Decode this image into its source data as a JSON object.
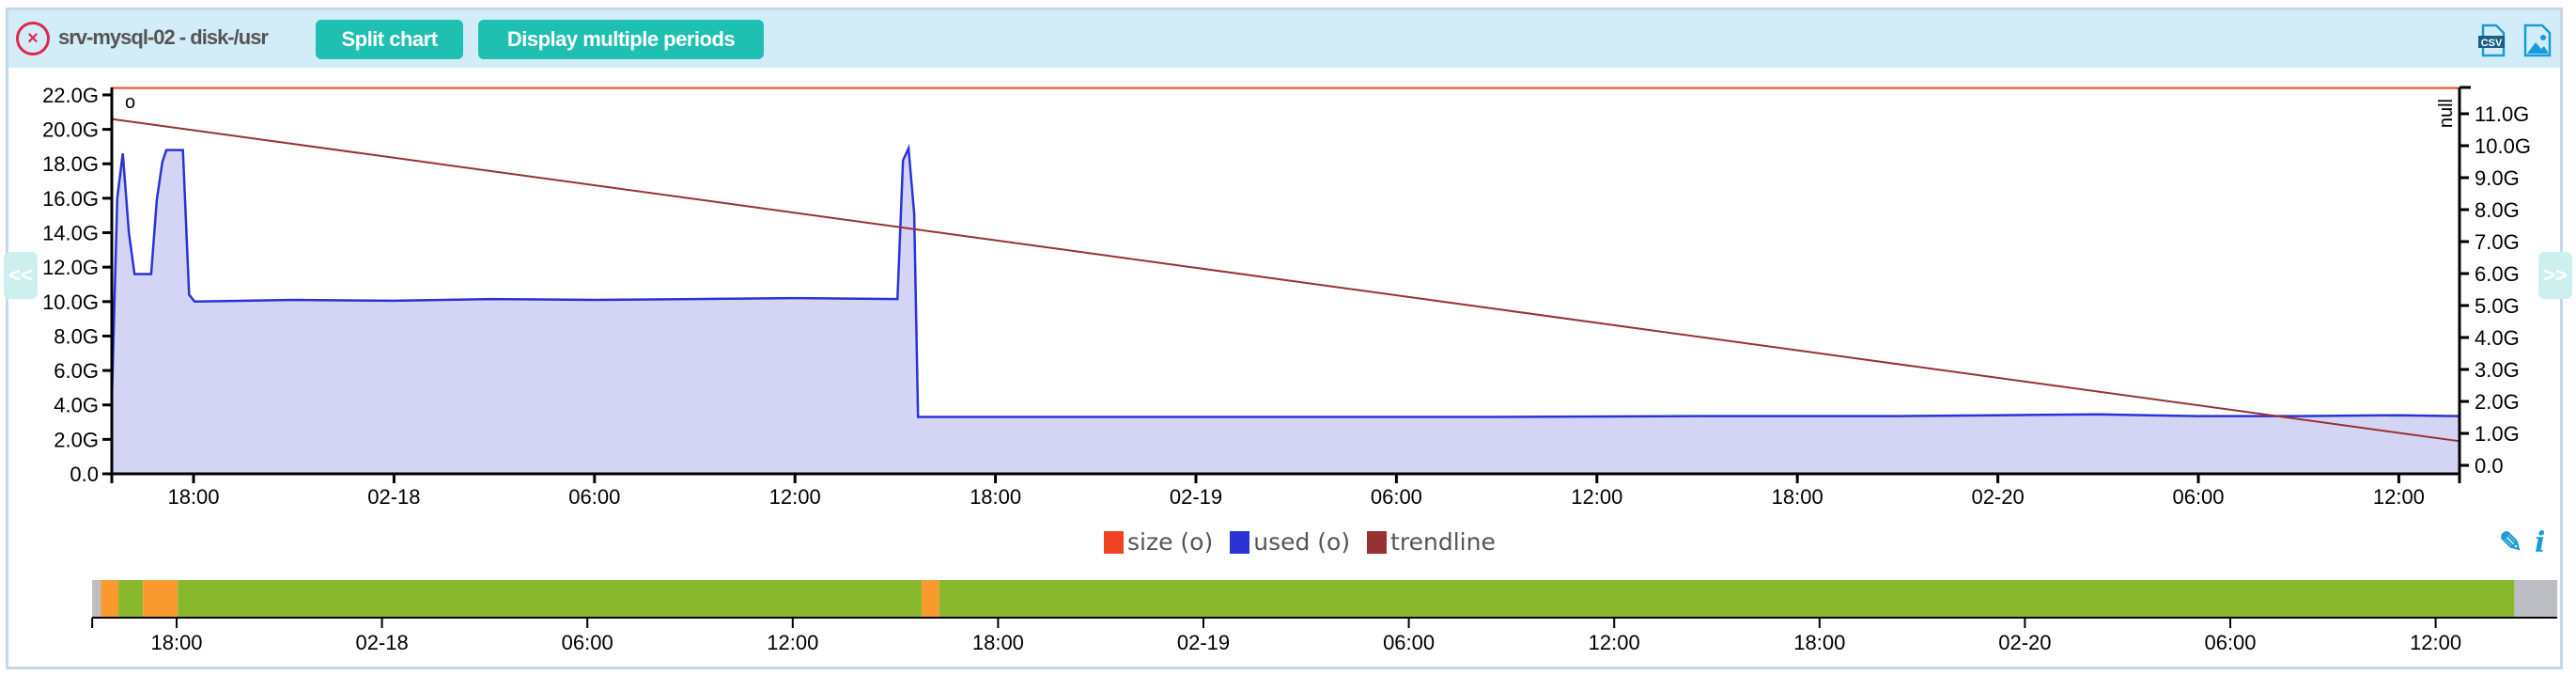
{
  "header": {
    "title": "srv-mysql-02 - disk-/usr",
    "split_chart_label": "Split chart",
    "multiple_periods_label": "Display multiple periods",
    "csv_icon_text": "CSV",
    "icons": [
      "close-circle-icon",
      "csv-export-icon",
      "image-export-icon"
    ]
  },
  "nav_buttons": {
    "prev": "<<",
    "next": ">>"
  },
  "colors": {
    "size": "#f04323",
    "used": "#2b33d6",
    "used_fill": "#d4d5f5",
    "trendline": "#973134",
    "ok": "#8ab82d",
    "warning": "#f99a2f",
    "nodata": "#bcbec3",
    "header_bg": "#d3edf8",
    "button": "#1fbfb2"
  },
  "chart_data": {
    "type": "area",
    "left_axis": {
      "label": "o",
      "ticks": [
        "0.0",
        "2.0G",
        "4.0G",
        "6.0G",
        "8.0G",
        "10.0G",
        "12.0G",
        "14.0G",
        "16.0G",
        "18.0G",
        "20.0G",
        "22.0G"
      ],
      "range": [
        0,
        22.4
      ]
    },
    "right_axis": {
      "label": "null",
      "ticks": [
        "0.0",
        "1.0G",
        "2.0G",
        "3.0G",
        "4.0G",
        "5.0G",
        "6.0G",
        "7.0G",
        "8.0G",
        "9.0G",
        "10.0G",
        "11.0G"
      ]
    },
    "x_range": [
      "02-17 15:33",
      "02-20 13:48"
    ],
    "x_ticks": [
      {
        "time": "02-17 18:00",
        "label": "18:00"
      },
      {
        "time": "02-18 00:00",
        "label": "02-18"
      },
      {
        "time": "02-18 06:00",
        "label": "06:00"
      },
      {
        "time": "02-18 12:00",
        "label": "12:00"
      },
      {
        "time": "02-18 18:00",
        "label": "18:00"
      },
      {
        "time": "02-19 00:00",
        "label": "02-19"
      },
      {
        "time": "02-19 06:00",
        "label": "06:00"
      },
      {
        "time": "02-19 12:00",
        "label": "12:00"
      },
      {
        "time": "02-19 18:00",
        "label": "18:00"
      },
      {
        "time": "02-20 00:00",
        "label": "02-20"
      },
      {
        "time": "02-20 06:00",
        "label": "06:00"
      },
      {
        "time": "02-20 12:00",
        "label": "12:00"
      }
    ],
    "series": [
      {
        "name": "size (o)",
        "unit": "G",
        "points": [
          [
            "02-17 15:33",
            22.4
          ],
          [
            "02-20 13:48",
            22.4
          ]
        ]
      },
      {
        "name": "used (o)",
        "unit": "G",
        "points": [
          [
            "02-17 15:33",
            4.0
          ],
          [
            "02-17 15:43",
            16.0
          ],
          [
            "02-17 15:53",
            18.6
          ],
          [
            "02-17 16:04",
            14.0
          ],
          [
            "02-17 16:14",
            11.6
          ],
          [
            "02-17 16:44",
            11.6
          ],
          [
            "02-17 16:54",
            15.9
          ],
          [
            "02-17 17:04",
            18.1
          ],
          [
            "02-17 17:11",
            18.8
          ],
          [
            "02-17 17:41",
            18.8
          ],
          [
            "02-17 17:52",
            10.4
          ],
          [
            "02-17 18:02",
            10.0
          ],
          [
            "02-17 21:00",
            10.1
          ],
          [
            "02-18 00:00",
            10.05
          ],
          [
            "02-18 03:00",
            10.15
          ],
          [
            "02-18 06:00",
            10.1
          ],
          [
            "02-18 09:00",
            10.15
          ],
          [
            "02-18 12:00",
            10.2
          ],
          [
            "02-18 15:04",
            10.15
          ],
          [
            "02-18 15:14",
            18.2
          ],
          [
            "02-18 15:24",
            18.9
          ],
          [
            "02-18 15:34",
            15.1
          ],
          [
            "02-18 15:41",
            3.3
          ],
          [
            "02-18 21:00",
            3.3
          ],
          [
            "02-19 03:00",
            3.3
          ],
          [
            "02-19 09:00",
            3.3
          ],
          [
            "02-19 15:00",
            3.35
          ],
          [
            "02-19 21:00",
            3.35
          ],
          [
            "02-20 00:00",
            3.4
          ],
          [
            "02-20 03:00",
            3.45
          ],
          [
            "02-20 06:00",
            3.35
          ],
          [
            "02-20 09:00",
            3.35
          ],
          [
            "02-20 12:00",
            3.4
          ],
          [
            "02-20 13:48",
            3.35
          ]
        ]
      },
      {
        "name": "trendline",
        "unit": "G",
        "points": [
          [
            "02-17 15:33",
            20.6
          ],
          [
            "02-20 13:48",
            1.9
          ]
        ]
      }
    ]
  },
  "navigator": {
    "range": [
      "02-17 15:32",
      "02-20 15:33"
    ],
    "segments": [
      {
        "from": "02-17 15:32",
        "to": "02-17 15:47",
        "status": "nodata"
      },
      {
        "from": "02-17 15:47",
        "to": "02-17 16:18",
        "status": "warning"
      },
      {
        "from": "02-17 16:18",
        "to": "02-17 17:01",
        "status": "ok"
      },
      {
        "from": "02-17 17:01",
        "to": "02-17 18:02",
        "status": "warning"
      },
      {
        "from": "02-17 18:02",
        "to": "02-18 15:46",
        "status": "ok"
      },
      {
        "from": "02-18 15:46",
        "to": "02-18 16:17",
        "status": "warning"
      },
      {
        "from": "02-18 16:17",
        "to": "02-20 14:18",
        "status": "ok"
      },
      {
        "from": "02-20 14:18",
        "to": "02-20 15:33",
        "status": "nodata"
      }
    ],
    "ticks": [
      {
        "time": "02-17 18:00",
        "label": "18:00"
      },
      {
        "time": "02-18 00:00",
        "label": "02-18"
      },
      {
        "time": "02-18 06:00",
        "label": "06:00"
      },
      {
        "time": "02-18 12:00",
        "label": "12:00"
      },
      {
        "time": "02-18 18:00",
        "label": "18:00"
      },
      {
        "time": "02-19 00:00",
        "label": "02-19"
      },
      {
        "time": "02-19 06:00",
        "label": "06:00"
      },
      {
        "time": "02-19 12:00",
        "label": "12:00"
      },
      {
        "time": "02-19 18:00",
        "label": "18:00"
      },
      {
        "time": "02-20 00:00",
        "label": "02-20"
      },
      {
        "time": "02-20 06:00",
        "label": "06:00"
      },
      {
        "time": "02-20 12:00",
        "label": "12:00"
      }
    ]
  },
  "legend": [
    {
      "label": "size (o)"
    },
    {
      "label": "used (o)"
    },
    {
      "label": "trendline"
    }
  ],
  "tools": {
    "edit_icon": "pencil-icon",
    "info_icon": "info-icon",
    "info_text": "i"
  }
}
